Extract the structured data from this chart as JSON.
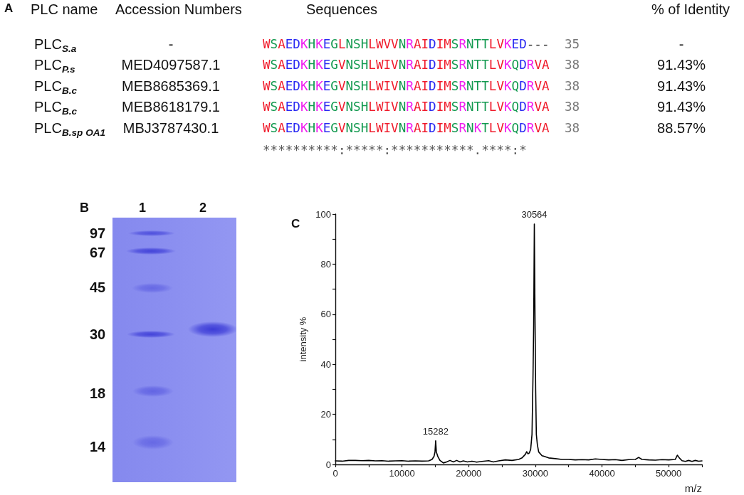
{
  "chart_data": [
    {
      "type": "other",
      "title": "A",
      "categories": [
        "PLC name",
        "Accession Numbers",
        "Sequences",
        "% of Identity"
      ],
      "y_categories": [
        "PLC$_{S.a}$",
        "PLC$_{P.s}$",
        "PLC$_{B.c}$",
        "PLC$_{B.c}$",
        "PLC$_{B.sp OA1}$"
      ],
      "cell_labels": [
        [
          "-",
          "WSAEDKHKEGLNSHLWVVNRAIDIMSRNTTLVKED---",
          "35",
          "-"
        ],
        [
          "MED4097587.1",
          "WSAEDKHKEGVNSHLWIVNRAIDIMSRNTTLVKQDRVA",
          "38",
          "91.43%"
        ],
        [
          "MEB8685369.1",
          "WSAEDKHKEGVNSHLWIVNRAIDIMSRNTTLVKQDRVA",
          "38",
          "91.43%"
        ],
        [
          "MEB8618179.1",
          "WSAEDKHKEGVNSHLWIVNRAIDIMSRNTTLVKQDRVA",
          "38",
          "91.43%"
        ],
        [
          "MBJ3787430.1",
          "WSAEDKHKEGVNSHLWIVNRAIDIMSRNKTLVKQDRVA",
          "38",
          "88.57%"
        ]
      ],
      "annotations": [
        "**********:*****:***********.****:*"
      ]
    },
    {
      "type": "other",
      "title": "B",
      "categories": [
        "1",
        "2"
      ],
      "y_categories": [
        "97",
        "67",
        "45",
        "30",
        "18",
        "14"
      ]
    },
    {
      "type": "line",
      "title": "C",
      "xlabel": "m/z",
      "ylabel": "intensity %",
      "xlim": [
        0,
        55000
      ],
      "ylim": [
        0,
        100
      ],
      "xticks": [
        0,
        {
          "value": 5000,
          "label": null
        },
        10000,
        {
          "value": 15000,
          "label": null
        },
        20000,
        {
          "value": 25000,
          "label": null
        },
        30000,
        {
          "value": 35000,
          "label": null
        },
        40000,
        {
          "value": 45000,
          "label": null
        },
        50000,
        {
          "value": 55000,
          "label": null
        }
      ],
      "yticks": [
        0,
        {
          "value": 10,
          "label": null
        },
        20,
        {
          "value": 30,
          "label": null
        },
        40,
        {
          "value": 50,
          "label": null
        },
        60,
        {
          "value": 70,
          "label": null
        },
        80,
        {
          "value": 90,
          "label": null
        },
        100
      ],
      "marker": "none",
      "line_style": "solid",
      "series": [
        {
          "color": "#000000",
          "x": [
            0,
            1000,
            2000,
            3000,
            4000,
            5000,
            6000,
            7000,
            8000,
            9000,
            10000,
            11000,
            12000,
            13000,
            14000,
            14500,
            14800,
            14950,
            15050,
            15150,
            15400,
            15700,
            16200,
            16700,
            17200,
            17700,
            18200,
            18700,
            19200,
            19800,
            20500,
            21200,
            22000,
            23000,
            23700,
            24500,
            25500,
            26500,
            27500,
            28000,
            28500,
            28700,
            28900,
            29100,
            29300,
            29500,
            29650,
            29750,
            29850,
            29900,
            29950,
            30000,
            30050,
            30150,
            30300,
            30500,
            31000,
            32000,
            33000,
            34000,
            35000,
            36000,
            37000,
            38000,
            39000,
            40000,
            41000,
            42000,
            43000,
            44000,
            45000,
            45500,
            46000,
            47000,
            48000,
            49000,
            50000,
            51000,
            51300,
            51600,
            52000,
            52500,
            53000,
            53500,
            54000,
            54500,
            55000
          ],
          "values": [
            1.4,
            1.3,
            1.6,
            1.6,
            1.5,
            1.6,
            1.4,
            1.5,
            1.3,
            1.4,
            1.5,
            1.3,
            1.4,
            1.3,
            1.4,
            2.0,
            3.2,
            5.0,
            9.4,
            5.0,
            3.0,
            1.6,
            0.6,
            1.0,
            1.6,
            1.0,
            1.6,
            1.0,
            1.4,
            1.0,
            1.3,
            0.9,
            1.2,
            1.5,
            1.0,
            1.4,
            1.8,
            1.6,
            2.0,
            2.6,
            4.0,
            5.1,
            4.2,
            4.6,
            6,
            12,
            35,
            55,
            96,
            96,
            60,
            45,
            30,
            12,
            8,
            5,
            3.5,
            2.6,
            2.3,
            2.0,
            2.0,
            1.8,
            1.9,
            1.8,
            2.2,
            2.0,
            1.8,
            1.9,
            1.6,
            1.9,
            2.0,
            2.8,
            2.0,
            1.8,
            1.7,
            1.9,
            1.8,
            2.0,
            3.7,
            2.6,
            1.5,
            1.2,
            1.6,
            1.2,
            1.6,
            1.3,
            1.4
          ]
        }
      ],
      "annotations": [
        {
          "text": "30564",
          "x": 29850,
          "y": 96
        },
        {
          "text": "15282",
          "x": 15050,
          "y": 9.4
        }
      ]
    }
  ]
}
